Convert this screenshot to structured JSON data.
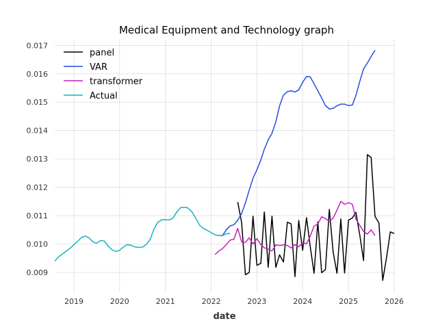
{
  "chart_data": {
    "type": "line",
    "title": "Medical Equipment and Technology graph",
    "xlabel": "date",
    "ylabel": "",
    "xlim": [
      "2018-08-01",
      "2026-01-01"
    ],
    "ylim": [
      0.0083,
      0.0172
    ],
    "grid": true,
    "legend_position": "top-left",
    "x_ticks": [
      "2019",
      "2020",
      "2021",
      "2022",
      "2023",
      "2024",
      "2025",
      "2026"
    ],
    "y_ticks": [
      "0.009",
      "0.010",
      "0.011",
      "0.012",
      "0.013",
      "0.014",
      "0.015",
      "0.016",
      "0.017"
    ],
    "series": [
      {
        "name": "panel",
        "color": "#000000",
        "points": [
          [
            "2022-08-01",
            0.01148
          ],
          [
            "2022-09-01",
            0.01075
          ],
          [
            "2022-10-01",
            0.00892
          ],
          [
            "2022-11-01",
            0.009
          ],
          [
            "2022-12-01",
            0.01098
          ],
          [
            "2023-01-01",
            0.00925
          ],
          [
            "2023-02-01",
            0.00932
          ],
          [
            "2023-03-01",
            0.01113
          ],
          [
            "2023-04-01",
            0.00918
          ],
          [
            "2023-05-01",
            0.01098
          ],
          [
            "2023-06-01",
            0.00918
          ],
          [
            "2023-07-01",
            0.00962
          ],
          [
            "2023-08-01",
            0.00937
          ],
          [
            "2023-09-01",
            0.01077
          ],
          [
            "2023-10-01",
            0.01071
          ],
          [
            "2023-11-01",
            0.00885
          ],
          [
            "2023-12-01",
            0.01083
          ],
          [
            "2024-01-01",
            0.00978
          ],
          [
            "2024-02-01",
            0.01093
          ],
          [
            "2024-03-01",
            0.00993
          ],
          [
            "2024-04-01",
            0.00897
          ],
          [
            "2024-05-01",
            0.01078
          ],
          [
            "2024-06-01",
            0.00899
          ],
          [
            "2024-07-01",
            0.0091
          ],
          [
            "2024-08-01",
            0.01122
          ],
          [
            "2024-09-01",
            0.0097
          ],
          [
            "2024-10-01",
            0.00897
          ],
          [
            "2024-11-01",
            0.01088
          ],
          [
            "2024-12-01",
            0.00898
          ],
          [
            "2025-01-01",
            0.01084
          ],
          [
            "2025-02-01",
            0.01092
          ],
          [
            "2025-03-01",
            0.01112
          ],
          [
            "2025-04-01",
            0.01032
          ],
          [
            "2025-05-01",
            0.00942
          ],
          [
            "2025-06-01",
            0.01315
          ],
          [
            "2025-07-01",
            0.01305
          ],
          [
            "2025-08-01",
            0.01097
          ],
          [
            "2025-09-01",
            0.01074
          ],
          [
            "2025-10-01",
            0.00872
          ],
          [
            "2025-11-01",
            0.00952
          ],
          [
            "2025-12-01",
            0.01043
          ],
          [
            "2026-01-01",
            0.01037
          ]
        ]
      },
      {
        "name": "VAR",
        "color": "#1f4ee0",
        "points": [
          [
            "2022-03-01",
            0.0103
          ],
          [
            "2022-04-01",
            0.0103
          ],
          [
            "2022-05-01",
            0.0105
          ],
          [
            "2022-06-01",
            0.01064
          ],
          [
            "2022-07-01",
            0.01068
          ],
          [
            "2022-08-01",
            0.01084
          ],
          [
            "2022-09-01",
            0.01108
          ],
          [
            "2022-10-01",
            0.01145
          ],
          [
            "2022-11-01",
            0.0119
          ],
          [
            "2022-12-01",
            0.01232
          ],
          [
            "2023-01-01",
            0.01262
          ],
          [
            "2023-02-01",
            0.01296
          ],
          [
            "2023-03-01",
            0.01334
          ],
          [
            "2023-04-01",
            0.01367
          ],
          [
            "2023-05-01",
            0.0139
          ],
          [
            "2023-06-01",
            0.0143
          ],
          [
            "2023-07-01",
            0.01487
          ],
          [
            "2023-08-01",
            0.01525
          ],
          [
            "2023-09-01",
            0.01537
          ],
          [
            "2023-10-01",
            0.0154
          ],
          [
            "2023-11-01",
            0.01536
          ],
          [
            "2023-12-01",
            0.01543
          ],
          [
            "2024-01-01",
            0.0157
          ],
          [
            "2024-02-01",
            0.0159
          ],
          [
            "2024-03-01",
            0.01589
          ],
          [
            "2024-04-01",
            0.01565
          ],
          [
            "2024-05-01",
            0.0154
          ],
          [
            "2024-06-01",
            0.01515
          ],
          [
            "2024-07-01",
            0.01488
          ],
          [
            "2024-08-01",
            0.01476
          ],
          [
            "2024-09-01",
            0.01478
          ],
          [
            "2024-10-01",
            0.01487
          ],
          [
            "2024-11-01",
            0.01493
          ],
          [
            "2024-12-01",
            0.01493
          ],
          [
            "2025-01-01",
            0.01488
          ],
          [
            "2025-02-01",
            0.0149
          ],
          [
            "2025-03-01",
            0.01523
          ],
          [
            "2025-04-01",
            0.01573
          ],
          [
            "2025-05-01",
            0.01617
          ],
          [
            "2025-06-01",
            0.01638
          ],
          [
            "2025-07-01",
            0.01661
          ],
          [
            "2025-08-01",
            0.01683
          ]
        ]
      },
      {
        "name": "transformer",
        "color": "#bf1fbf",
        "points": [
          [
            "2022-02-01",
            0.00963
          ],
          [
            "2022-03-01",
            0.00975
          ],
          [
            "2022-04-01",
            0.00984
          ],
          [
            "2022-05-01",
            0.00998
          ],
          [
            "2022-06-01",
            0.01014
          ],
          [
            "2022-07-01",
            0.01017
          ],
          [
            "2022-08-01",
            0.01055
          ],
          [
            "2022-09-01",
            0.01007
          ],
          [
            "2022-10-01",
            0.01006
          ],
          [
            "2022-11-01",
            0.01022
          ],
          [
            "2022-12-01",
            0.01
          ],
          [
            "2023-01-01",
            0.01019
          ],
          [
            "2023-02-01",
            0.00998
          ],
          [
            "2023-03-01",
            0.00987
          ],
          [
            "2023-04-01",
            0.00982
          ],
          [
            "2023-05-01",
            0.00976
          ],
          [
            "2023-06-01",
            0.00997
          ],
          [
            "2023-07-01",
            0.00995
          ],
          [
            "2023-08-01",
            0.00997
          ],
          [
            "2023-09-01",
            0.00995
          ],
          [
            "2023-10-01",
            0.00986
          ],
          [
            "2023-11-01",
            0.00998
          ],
          [
            "2023-12-01",
            0.0099
          ],
          [
            "2024-01-01",
            0.01005
          ],
          [
            "2024-02-01",
            0.01001
          ],
          [
            "2024-03-01",
            0.01027
          ],
          [
            "2024-04-01",
            0.01063
          ],
          [
            "2024-05-01",
            0.01071
          ],
          [
            "2024-06-01",
            0.01096
          ],
          [
            "2024-07-01",
            0.0109
          ],
          [
            "2024-08-01",
            0.0108
          ],
          [
            "2024-09-01",
            0.01092
          ],
          [
            "2024-10-01",
            0.0112
          ],
          [
            "2024-11-01",
            0.0115
          ],
          [
            "2024-12-01",
            0.0114
          ],
          [
            "2025-01-01",
            0.01146
          ],
          [
            "2025-02-01",
            0.0114
          ],
          [
            "2025-03-01",
            0.01088
          ],
          [
            "2025-04-01",
            0.01066
          ],
          [
            "2025-05-01",
            0.01045
          ],
          [
            "2025-06-01",
            0.01035
          ],
          [
            "2025-07-01",
            0.0105
          ],
          [
            "2025-08-01",
            0.0103
          ]
        ]
      },
      {
        "name": "Actual",
        "color": "#17b2c2",
        "points": [
          [
            "2018-08-01",
            0.0094
          ],
          [
            "2018-09-01",
            0.00955
          ],
          [
            "2018-10-01",
            0.00965
          ],
          [
            "2018-11-01",
            0.00975
          ],
          [
            "2018-12-01",
            0.00985
          ],
          [
            "2019-01-01",
            0.00998
          ],
          [
            "2019-02-01",
            0.0101
          ],
          [
            "2019-03-01",
            0.01023
          ],
          [
            "2019-04-01",
            0.01028
          ],
          [
            "2019-05-01",
            0.01022
          ],
          [
            "2019-06-01",
            0.01008
          ],
          [
            "2019-07-01",
            0.01003
          ],
          [
            "2019-08-01",
            0.01012
          ],
          [
            "2019-09-01",
            0.01011
          ],
          [
            "2019-10-01",
            0.00993
          ],
          [
            "2019-11-01",
            0.0098
          ],
          [
            "2019-12-01",
            0.00974
          ],
          [
            "2020-01-01",
            0.00978
          ],
          [
            "2020-02-01",
            0.0099
          ],
          [
            "2020-03-01",
            0.00998
          ],
          [
            "2020-04-01",
            0.00996
          ],
          [
            "2020-05-01",
            0.0099
          ],
          [
            "2020-06-01",
            0.00988
          ],
          [
            "2020-07-01",
            0.00989
          ],
          [
            "2020-08-01",
            0.00998
          ],
          [
            "2020-09-01",
            0.01017
          ],
          [
            "2020-10-01",
            0.01053
          ],
          [
            "2020-11-01",
            0.01077
          ],
          [
            "2020-12-01",
            0.01085
          ],
          [
            "2021-01-01",
            0.01086
          ],
          [
            "2021-02-01",
            0.01085
          ],
          [
            "2021-03-01",
            0.01091
          ],
          [
            "2021-04-01",
            0.01113
          ],
          [
            "2021-05-01",
            0.01128
          ],
          [
            "2021-06-01",
            0.0113
          ],
          [
            "2021-07-01",
            0.01127
          ],
          [
            "2021-08-01",
            0.01113
          ],
          [
            "2021-09-01",
            0.0109
          ],
          [
            "2021-10-01",
            0.01066
          ],
          [
            "2021-11-01",
            0.01055
          ],
          [
            "2021-12-01",
            0.01048
          ],
          [
            "2022-01-01",
            0.0104
          ],
          [
            "2022-02-01",
            0.01033
          ],
          [
            "2022-03-01",
            0.0103
          ],
          [
            "2022-04-01",
            0.0103
          ],
          [
            "2022-05-01",
            0.01036
          ],
          [
            "2022-06-01",
            0.01038
          ]
        ]
      }
    ]
  }
}
